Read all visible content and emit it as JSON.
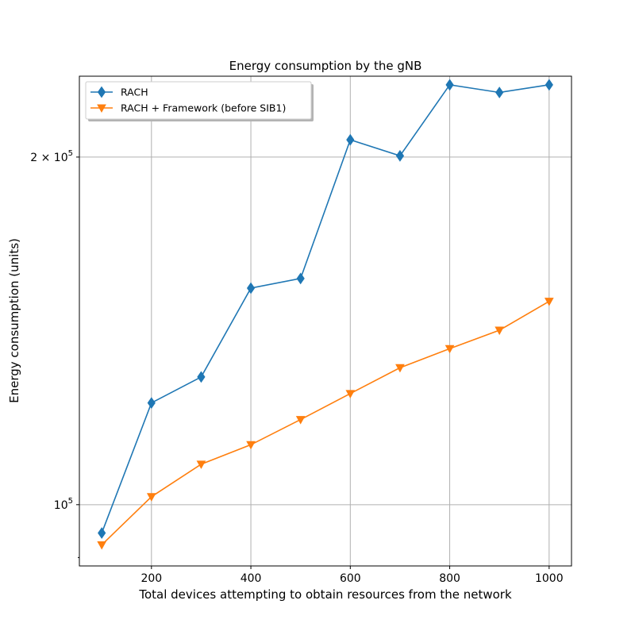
{
  "chart_data": {
    "type": "line",
    "title": "Energy consumption by the gNB",
    "xlabel": "Total devices attempting to obtain resources from the network",
    "ylabel": "Energy consumption (units)",
    "x": [
      100,
      200,
      300,
      400,
      500,
      600,
      700,
      800,
      900,
      1000
    ],
    "xlim": [
      55,
      1045
    ],
    "ylim": [
      88500,
      235000
    ],
    "yscale": "log",
    "x_ticks": [
      200,
      400,
      600,
      800,
      1000
    ],
    "y_ticks": [
      {
        "value": 100000,
        "label": "10^5",
        "mant": "10",
        "exp": "5"
      },
      {
        "value": 200000,
        "label": "2×10^5",
        "mant": "2 × 10",
        "exp": "5"
      }
    ],
    "grid": true,
    "legend_position": "upper-left",
    "series": [
      {
        "name": "RACH",
        "color": "#1f77b4",
        "marker": "diamond",
        "values": [
          94500,
          122500,
          129000,
          154000,
          157000,
          207000,
          200500,
          231000,
          227500,
          231000
        ]
      },
      {
        "name": "RACH + Framework (before SIB1)",
        "color": "#ff7f0e",
        "marker": "triangle-down",
        "values": [
          92300,
          101600,
          108400,
          112700,
          118500,
          124800,
          131400,
          136500,
          141600,
          150000
        ]
      }
    ]
  }
}
